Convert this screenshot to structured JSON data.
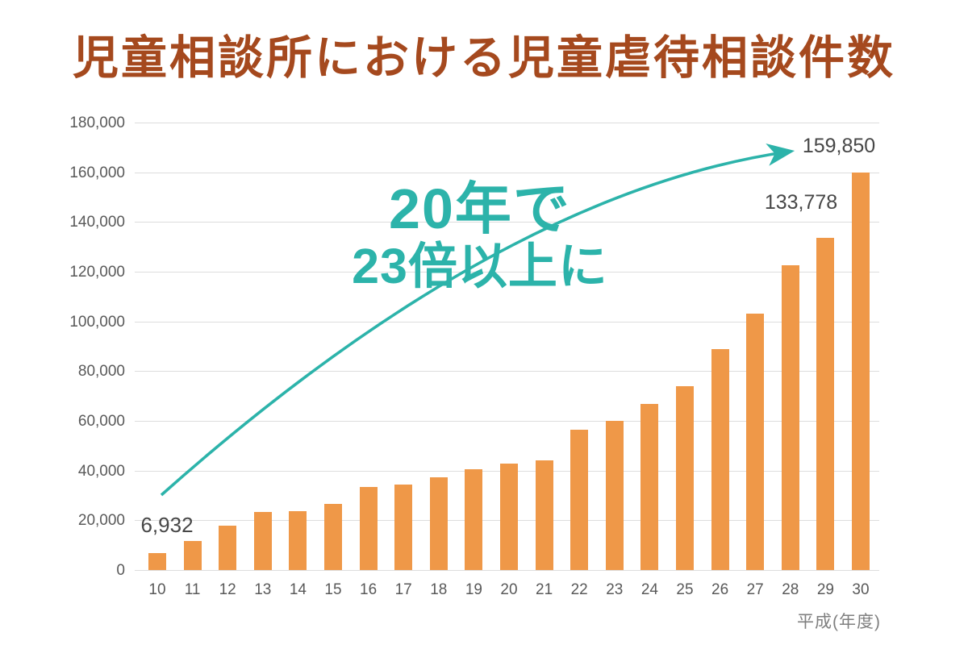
{
  "chart_data": {
    "type": "bar",
    "title": "児童相談所における児童虐待相談件数",
    "categories": [
      "10",
      "11",
      "12",
      "13",
      "14",
      "15",
      "16",
      "17",
      "18",
      "19",
      "20",
      "21",
      "22",
      "23",
      "24",
      "25",
      "26",
      "27",
      "28",
      "29",
      "30"
    ],
    "values": [
      6932,
      11631,
      17725,
      23274,
      23738,
      26569,
      33408,
      34472,
      37323,
      40639,
      42664,
      44211,
      56384,
      59919,
      66701,
      73802,
      88931,
      103286,
      122575,
      133778,
      159850
    ],
    "xlabel": "平成(年度)",
    "ylabel": "",
    "ylim": [
      0,
      180000
    ],
    "ytick_step": 20000,
    "ytick_labels": [
      "0",
      "20,000",
      "40,000",
      "60,000",
      "80,000",
      "100,000",
      "120,000",
      "140,000",
      "160,000",
      "180,000"
    ],
    "grid": true,
    "legend_position": "none",
    "shown_value_labels": {
      "first": "6,932",
      "h29": "133,778",
      "h30": "159,850"
    }
  },
  "annotation": {
    "line1": "20年で",
    "line2": "23倍以上に",
    "arrow_from": "bar 10 (6,932)",
    "arrow_to": "159,850 label"
  },
  "colors": {
    "bar": "#EF9848",
    "title": "#A5491E",
    "accent_teal": "#2CB3AA",
    "grid": "#DDDDDD",
    "axis_text": "#595959",
    "value_label_text": "#474747"
  }
}
